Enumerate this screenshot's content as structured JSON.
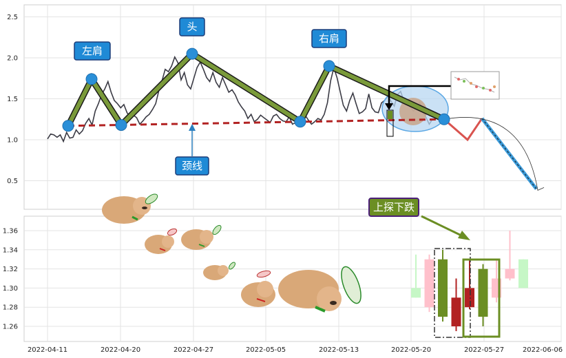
{
  "chart_data": [
    {
      "type": "line",
      "pattern": "head and shoulders top",
      "grid": true,
      "ylim": [
        0.1,
        2.6
      ],
      "y_ticks": [
        "0.5",
        "1.0",
        "1.5",
        "2.0",
        "2.5"
      ],
      "series": [
        {
          "values": [
            1.01,
            1.07,
            1.06,
            1.03,
            1.06,
            0.98,
            1.09,
            1.02,
            1.03,
            1.12,
            1.07,
            1.11,
            1.2,
            1.26,
            1.18,
            1.35,
            1.44,
            1.55,
            1.62,
            1.71,
            1.58,
            1.48,
            1.44,
            1.39,
            1.43,
            1.33,
            1.28,
            1.3,
            1.27,
            1.19,
            1.23,
            1.28,
            1.31,
            1.37,
            1.44,
            1.6,
            1.72,
            1.86,
            1.83,
            1.9,
            2.01,
            1.94,
            1.73,
            1.82,
            1.67,
            1.62,
            1.75,
            1.88,
            1.95,
            1.86,
            1.76,
            1.71,
            1.82,
            1.7,
            1.64,
            1.76,
            1.67,
            1.58,
            1.61,
            1.55,
            1.46,
            1.4,
            1.35,
            1.26,
            1.31,
            1.22,
            1.25,
            1.3,
            1.27,
            1.24,
            1.21,
            1.29,
            1.31,
            1.26,
            1.23,
            1.22,
            1.28,
            1.19,
            1.21,
            1.26,
            1.24,
            1.3,
            1.24,
            1.19,
            1.22,
            1.26,
            1.24,
            1.31,
            1.45,
            1.72,
            1.88,
            1.76,
            1.59,
            1.42,
            1.35,
            1.48,
            1.57,
            1.44,
            1.32,
            1.34,
            1.38,
            1.56,
            1.39,
            1.34,
            1.33,
            1.45,
            1.48,
            1.53,
            1.47,
            1.41,
            1.55,
            1.59,
            1.48,
            1.45,
            1.4,
            1.35,
            1.38,
            1.46,
            1.34,
            1.27,
            1.19,
            1.25
          ]
        }
      ],
      "key_points": [
        {
          "label": "左肩",
          "y": 1.74
        },
        {
          "label": "头",
          "y": 2.05
        },
        {
          "label": "右肩",
          "y": 1.9
        }
      ],
      "neckline": {
        "label": "颈线",
        "y_start": 1.17,
        "y_end": 1.25
      },
      "projection": [
        1.25,
        1.0,
        1.26,
        0.4
      ]
    },
    {
      "type": "candlestick",
      "grid": true,
      "ylim": [
        1.245,
        1.375
      ],
      "y_ticks": [
        "1.26",
        "1.28",
        "1.30",
        "1.32",
        "1.34",
        "1.36"
      ],
      "x_ticks": [
        "2022-04-11",
        "2022-04-20",
        "2022-04-27",
        "2022-05-05",
        "2022-05-13",
        "2022-05-20",
        "2022-05-27",
        "2022-06-06"
      ],
      "annotation": "上探下跌",
      "candles": [
        {
          "open": 1.29,
          "close": 1.3,
          "high": 1.335,
          "low": 1.29,
          "color": "#c6f7c6"
        },
        {
          "open": 1.28,
          "close": 1.33,
          "high": 1.335,
          "low": 1.275,
          "color": "#ffc0cb"
        },
        {
          "open": 1.33,
          "close": 1.27,
          "high": 1.34,
          "low": 1.265,
          "color": "#6b8e23"
        },
        {
          "open": 1.26,
          "close": 1.29,
          "high": 1.31,
          "low": 1.255,
          "color": "#b22222"
        },
        {
          "open": 1.28,
          "close": 1.3,
          "high": 1.33,
          "low": 1.278,
          "color": "#b22222"
        },
        {
          "open": 1.32,
          "close": 1.27,
          "high": 1.325,
          "low": 1.26,
          "color": "#6b8e23"
        },
        {
          "open": 1.29,
          "close": 1.31,
          "high": 1.33,
          "low": 1.285,
          "color": "#ffc0cb"
        },
        {
          "open": 1.31,
          "close": 1.32,
          "high": 1.36,
          "low": 1.308,
          "color": "#ffc0cb"
        },
        {
          "open": 1.3,
          "close": 1.33,
          "high": 1.33,
          "low": 1.3,
          "color": "#c6f7c6"
        }
      ]
    }
  ],
  "colors": {
    "price_line": "#3a3a44",
    "pattern_line": "#6b8e23",
    "node": "#2a8fd8",
    "neckline": "#b22222",
    "callout_bg": "#1f8ad6",
    "callout_border": "#1c3c78",
    "annotation_bg": "#6b8e23",
    "annotation_border": "#4b1e78",
    "projection_up": "#d9534f",
    "projection_down": "#3a9ad9"
  },
  "decoration": "puppy-with-propeller-hat-illustration"
}
